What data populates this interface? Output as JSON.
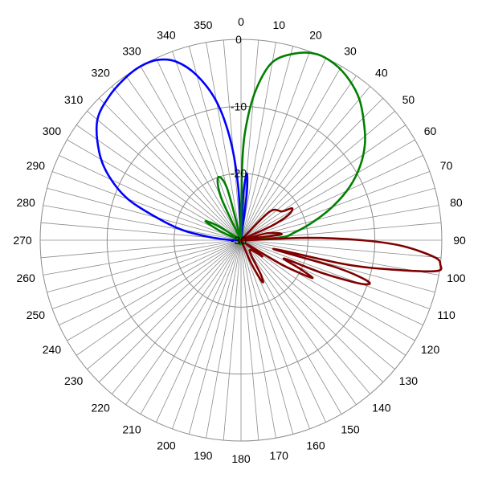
{
  "chart_data": {
    "type": "polar-line",
    "title": "",
    "angle_unit": "degrees",
    "angle_direction": "clockwise",
    "angle_zero": "top",
    "angle_ticks": [
      0,
      10,
      20,
      30,
      40,
      50,
      60,
      70,
      80,
      90,
      100,
      110,
      120,
      130,
      140,
      150,
      160,
      170,
      180,
      190,
      200,
      210,
      220,
      230,
      240,
      250,
      260,
      270,
      280,
      290,
      300,
      310,
      320,
      330,
      340,
      350
    ],
    "radial_range": [
      -30,
      0
    ],
    "radial_ticks": [
      -30,
      -20,
      -10,
      0
    ],
    "radial_tick_labels": [
      "-30",
      "-20",
      "-10",
      "0"
    ],
    "grid": true,
    "legend": "none",
    "series": [
      {
        "color": "#0000ff",
        "points": [
          [
            0,
            -30
          ],
          [
            3,
            -23
          ],
          [
            5,
            -20
          ],
          [
            7,
            -23
          ],
          [
            10,
            -30
          ],
          [
            270,
            -30
          ],
          [
            272,
            -28
          ],
          [
            276,
            -25
          ],
          [
            280,
            -21
          ],
          [
            285,
            -17
          ],
          [
            290,
            -12
          ],
          [
            296,
            -8
          ],
          [
            302,
            -5
          ],
          [
            310,
            -2
          ],
          [
            318,
            -0.8
          ],
          [
            325,
            -0.2
          ],
          [
            330,
            0
          ],
          [
            335,
            -0.3
          ],
          [
            340,
            -1.6
          ],
          [
            345,
            -4.5
          ],
          [
            350,
            -9
          ],
          [
            354,
            -15
          ],
          [
            357,
            -22
          ],
          [
            359,
            -30
          ]
        ]
      },
      {
        "color": "#008000",
        "points": [
          [
            0,
            -30
          ],
          [
            1,
            -18
          ],
          [
            3,
            -12
          ],
          [
            6,
            -7
          ],
          [
            10,
            -3
          ],
          [
            16,
            -1
          ],
          [
            22,
            0
          ],
          [
            28,
            -0.2
          ],
          [
            34,
            -1.1
          ],
          [
            40,
            -2.5
          ],
          [
            46,
            -4.5
          ],
          [
            52,
            -6.5
          ],
          [
            58,
            -9
          ],
          [
            64,
            -12
          ],
          [
            70,
            -15.5
          ],
          [
            76,
            -19
          ],
          [
            82,
            -22
          ],
          [
            86,
            -24
          ],
          [
            88,
            -30
          ],
          [
            350,
            -30
          ],
          [
            345,
            -22
          ],
          [
            340,
            -20
          ],
          [
            335,
            -23
          ],
          [
            332,
            -30
          ],
          [
            306,
            -30
          ],
          [
            302,
            -26
          ],
          [
            298,
            -24
          ],
          [
            293,
            -27
          ],
          [
            290,
            -30
          ]
        ]
      },
      {
        "color": "#800000",
        "points": [
          [
            30,
            -30
          ],
          [
            45,
            -24
          ],
          [
            55,
            -22.5
          ],
          [
            58,
            -21
          ],
          [
            62,
            -22
          ],
          [
            65,
            -25
          ],
          [
            70,
            -30
          ],
          [
            75,
            -26
          ],
          [
            82,
            -24
          ],
          [
            86,
            -30
          ],
          [
            88,
            -20
          ],
          [
            90,
            -12
          ],
          [
            92,
            -6
          ],
          [
            95,
            -1
          ],
          [
            97,
            0
          ],
          [
            99,
            -0.5
          ],
          [
            101,
            -7
          ],
          [
            103,
            -14
          ],
          [
            105,
            -25
          ],
          [
            106,
            -15
          ],
          [
            108,
            -10
          ],
          [
            110,
            -11
          ],
          [
            112,
            -17
          ],
          [
            113,
            -23
          ],
          [
            116,
            -20
          ],
          [
            118,
            -18
          ],
          [
            121,
            -23
          ],
          [
            124,
            -29
          ],
          [
            127,
            -26
          ],
          [
            140,
            -28
          ],
          [
            150,
            -24
          ],
          [
            153,
            -23
          ],
          [
            156,
            -26
          ],
          [
            158,
            -30
          ]
        ]
      }
    ]
  }
}
